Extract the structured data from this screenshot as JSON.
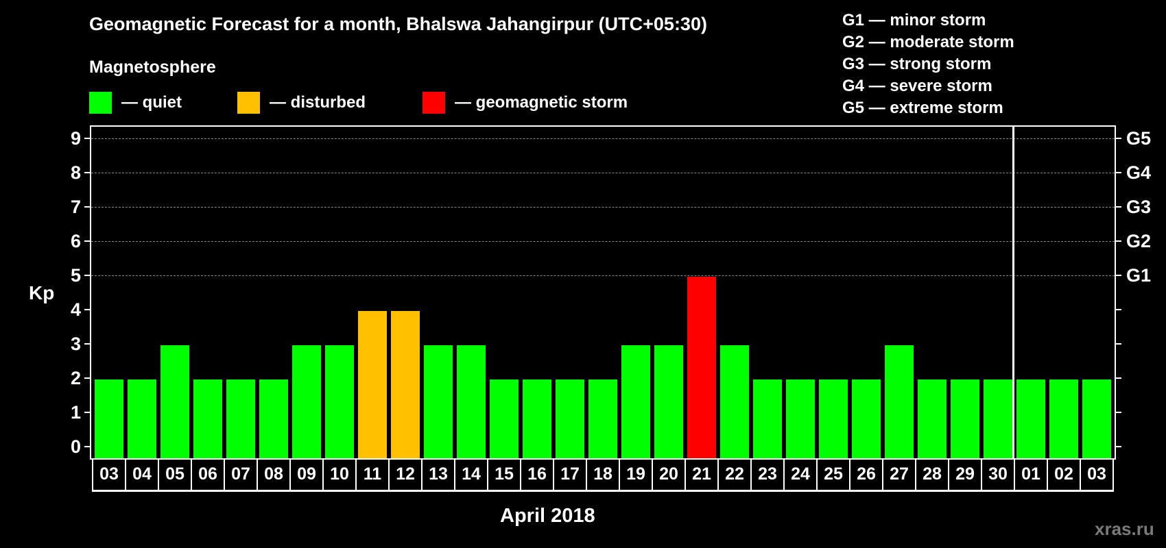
{
  "header": {
    "title": "Geomagnetic Forecast for a month, Bhalswa Jahangirpur (UTC+05:30)",
    "subtitle": "Magnetosphere"
  },
  "legend": [
    {
      "label": "— quiet",
      "color": "#00ff00"
    },
    {
      "label": "— disturbed",
      "color": "#ffc000"
    },
    {
      "label": "— geomagnetic storm",
      "color": "#ff0000"
    }
  ],
  "storm_legend": [
    "G1 — minor storm",
    "G2 — moderate storm",
    "G3 — strong storm",
    "G4 — severe storm",
    "G5 — extreme storm"
  ],
  "axis": {
    "ylabel": "Kp",
    "xlabel": "April 2018",
    "yticks": [
      "0",
      "1",
      "2",
      "3",
      "4",
      "5",
      "6",
      "7",
      "8",
      "9"
    ],
    "gticks": [
      {
        "kp": 5,
        "label": "G1"
      },
      {
        "kp": 6,
        "label": "G2"
      },
      {
        "kp": 7,
        "label": "G3"
      },
      {
        "kp": 8,
        "label": "G4"
      },
      {
        "kp": 9,
        "label": "G5"
      }
    ]
  },
  "watermark": "xras.ru",
  "colors": {
    "quiet": "#00ff00",
    "disturbed": "#ffc000",
    "storm": "#ff0000",
    "grid": "#8a8a8a"
  },
  "chart_data": {
    "type": "bar",
    "title": "Geomagnetic Forecast for a month, Bhalswa Jahangirpur (UTC+05:30)",
    "xlabel": "April 2018",
    "ylabel": "Kp",
    "ylim": [
      0,
      9
    ],
    "grid": "dashed horizontal at Kp 5-9",
    "categories": [
      "03",
      "04",
      "05",
      "06",
      "07",
      "08",
      "09",
      "10",
      "11",
      "12",
      "13",
      "14",
      "15",
      "16",
      "17",
      "18",
      "19",
      "20",
      "21",
      "22",
      "23",
      "24",
      "25",
      "26",
      "27",
      "28",
      "29",
      "30",
      "01",
      "02",
      "03"
    ],
    "values": [
      2,
      2,
      3,
      2,
      2,
      2,
      3,
      3,
      4,
      4,
      3,
      3,
      2,
      2,
      2,
      2,
      3,
      3,
      5,
      3,
      2,
      2,
      2,
      2,
      3,
      2,
      2,
      2,
      2,
      2,
      2
    ],
    "status": [
      "quiet",
      "quiet",
      "quiet",
      "quiet",
      "quiet",
      "quiet",
      "quiet",
      "quiet",
      "disturbed",
      "disturbed",
      "quiet",
      "quiet",
      "quiet",
      "quiet",
      "quiet",
      "quiet",
      "quiet",
      "quiet",
      "storm",
      "quiet",
      "quiet",
      "quiet",
      "quiet",
      "quiet",
      "quiet",
      "quiet",
      "quiet",
      "quiet",
      "quiet",
      "quiet",
      "quiet"
    ],
    "legend": [
      "quiet",
      "disturbed",
      "geomagnetic storm"
    ],
    "secondary_axis": {
      "G1": 5,
      "G2": 6,
      "G3": 7,
      "G4": 8,
      "G5": 9
    },
    "month_divider_after": "30"
  }
}
